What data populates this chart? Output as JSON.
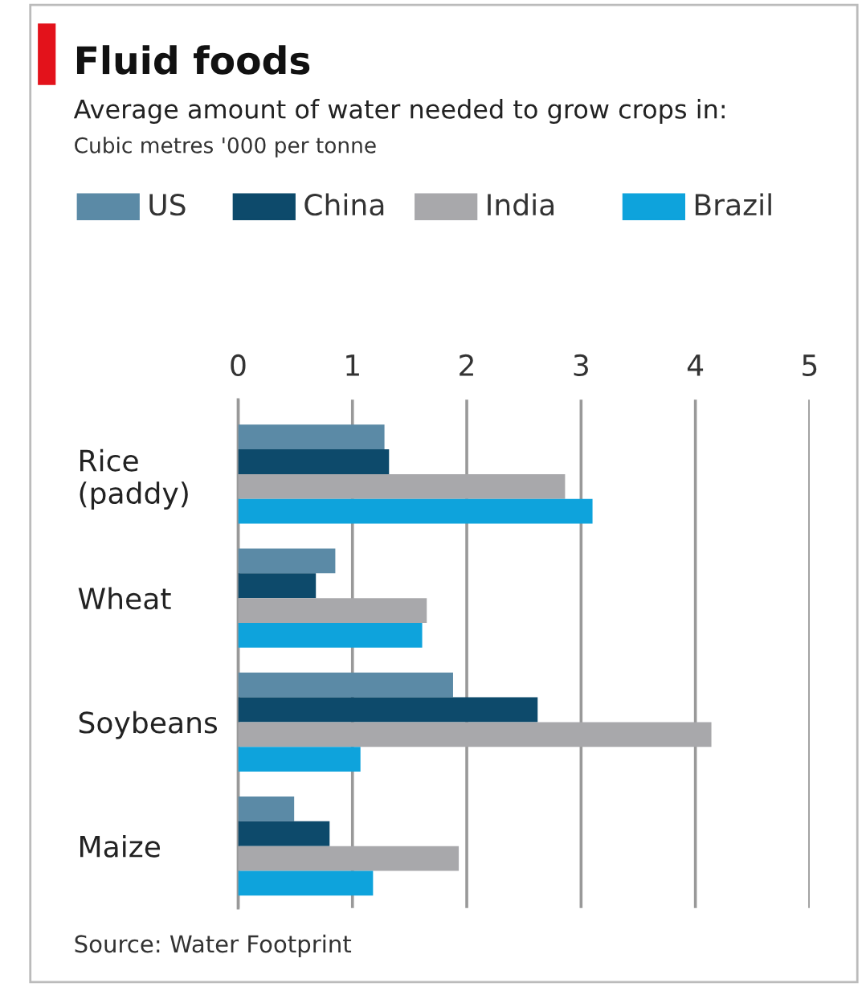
{
  "chart_data": {
    "type": "bar",
    "orientation": "horizontal",
    "title": "Fluid foods",
    "subtitle": "Average amount of water needed to grow crops in:",
    "categories": [
      "Rice\n(paddy)",
      "Wheat",
      "Soybeans",
      "Maize"
    ],
    "series": [
      {
        "name": "US",
        "color": "#5b8aa6",
        "values": [
          1.28,
          0.85,
          1.88,
          0.49
        ]
      },
      {
        "name": "China",
        "color": "#0d4a6b",
        "values": [
          1.32,
          0.68,
          2.62,
          0.8
        ]
      },
      {
        "name": "India",
        "color": "#a8a8ab",
        "values": [
          2.86,
          1.65,
          4.14,
          1.93
        ]
      },
      {
        "name": "Brazil",
        "color": "#0ea3dc",
        "values": [
          3.1,
          1.61,
          1.07,
          1.18
        ]
      }
    ],
    "xlim": [
      0,
      5
    ],
    "xticks": [
      0,
      1,
      2,
      3,
      4,
      5
    ],
    "grid": "x",
    "legend": "top",
    "annotations": [
      "Cubic metres '000 per tonne",
      "Source: Water Footprint"
    ]
  }
}
